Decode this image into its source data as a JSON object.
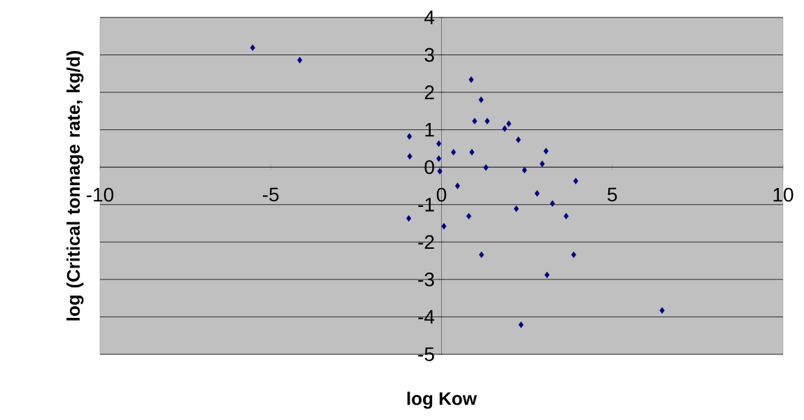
{
  "chart_data": {
    "type": "scatter",
    "xlabel": "log Kow",
    "ylabel": "log (Critical tonnage rate, kg/d)",
    "x": [
      -5.53,
      -4.15,
      0.87,
      1.16,
      0.97,
      1.34,
      1.97,
      1.85,
      -0.94,
      2.25,
      -0.08,
      3.06,
      0.35,
      0.89,
      -0.93,
      -0.08,
      2.95,
      1.3,
      -0.05,
      2.43,
      3.93,
      0.47,
      2.8,
      3.25,
      2.19,
      -0.96,
      0.8,
      3.65,
      0.07,
      1.17,
      3.87,
      3.09,
      2.33,
      6.46
    ],
    "values": [
      3.19,
      2.86,
      2.34,
      1.8,
      1.23,
      1.23,
      1.16,
      1.03,
      0.82,
      0.73,
      0.63,
      0.43,
      0.4,
      0.4,
      0.29,
      0.23,
      0.09,
      -0.01,
      -0.11,
      -0.08,
      -0.37,
      -0.5,
      -0.7,
      -0.97,
      -1.11,
      -1.37,
      -1.31,
      -1.31,
      -1.58,
      -2.34,
      -2.34,
      -2.88,
      -4.21,
      -3.83
    ],
    "color": "#000080",
    "marker": "diamond",
    "grid": "y",
    "xlim": [
      -10,
      10
    ],
    "ylim": [
      -5,
      4
    ],
    "xticks": [
      -10,
      -5,
      0,
      5,
      10
    ],
    "yticks": [
      -5,
      -4,
      -3,
      -2,
      -1,
      0,
      1,
      2,
      3,
      4
    ]
  }
}
